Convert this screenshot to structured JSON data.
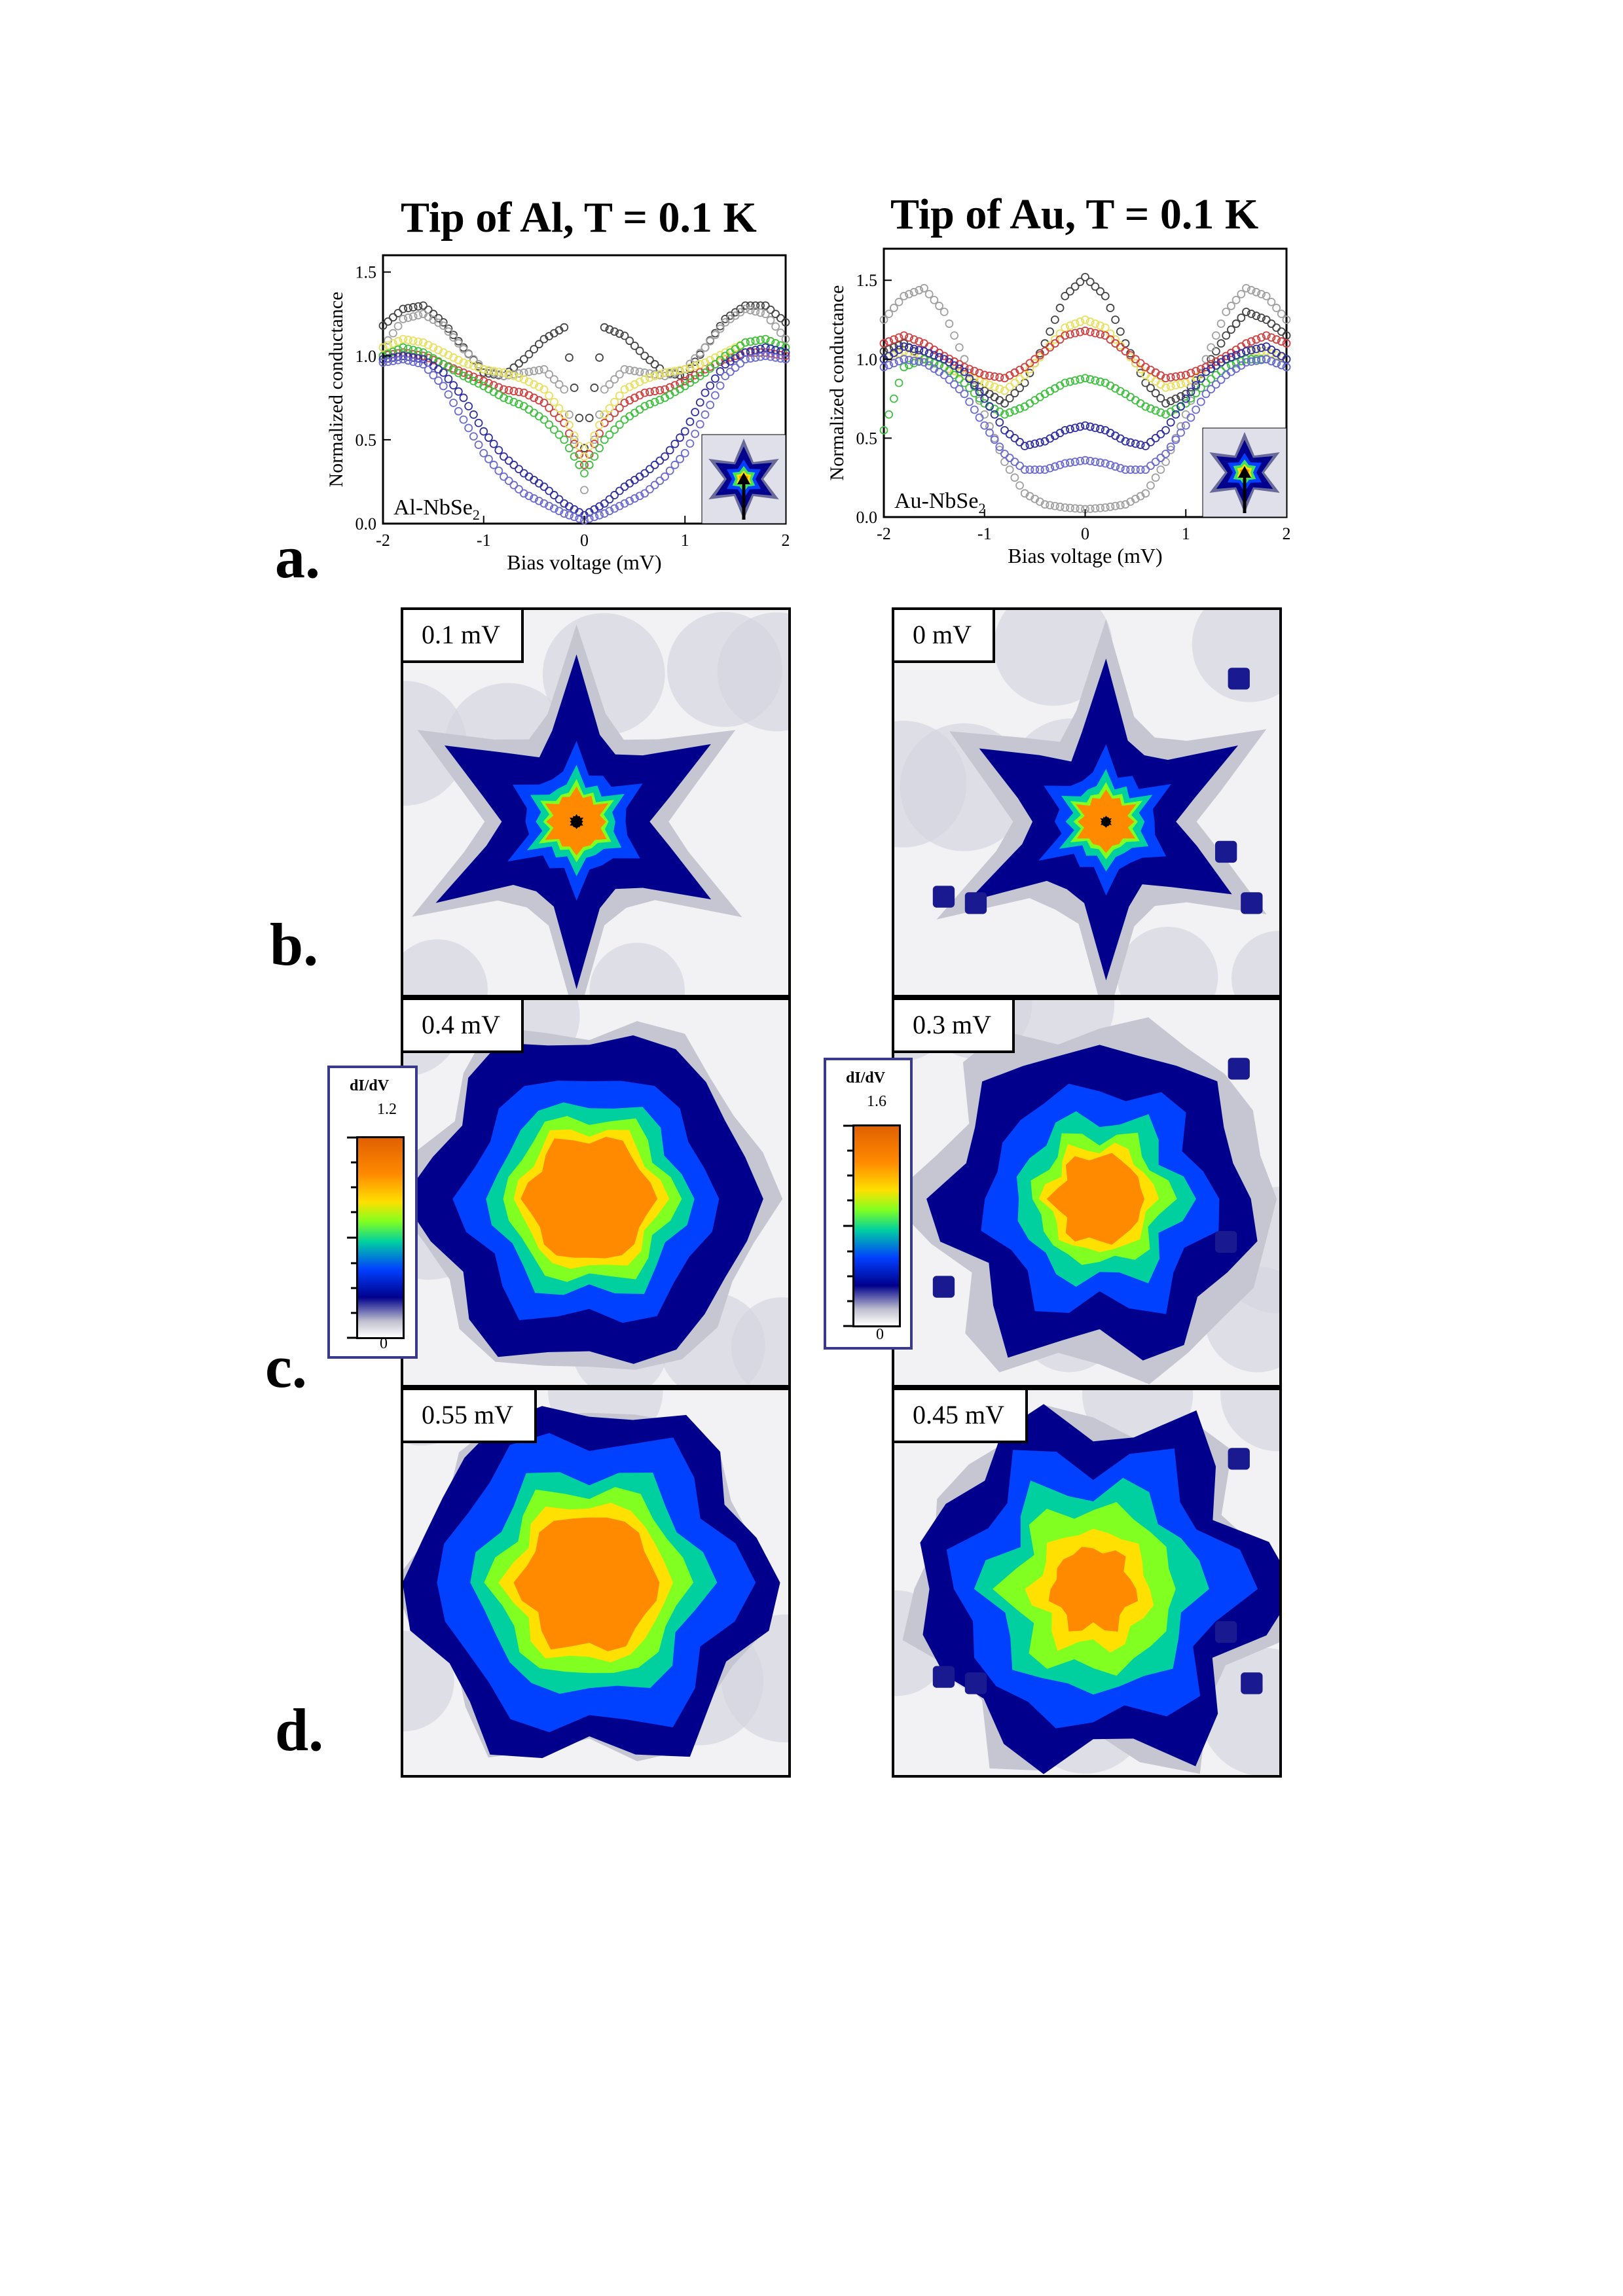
{
  "figure": {
    "panel_letters": [
      "a.",
      "b.",
      "c.",
      "d."
    ],
    "left_column_title": "Tip of Al, T = 0.1 K",
    "right_column_title": "Tip of Au, T = 0.1 K"
  },
  "chart_data": [
    {
      "type": "scatter",
      "title": "Tip of Al, T = 0.1 K",
      "xlabel": "Bias voltage (mV)",
      "ylabel": "Normalized conductance",
      "xlim": [
        -2,
        2
      ],
      "ylim": [
        0,
        1.6
      ],
      "xticks": [
        "-2",
        "-1",
        "0",
        "1",
        "2"
      ],
      "yticks": [
        "0.0",
        "0.5",
        "1.0",
        "1.5"
      ],
      "annotation": "Al-NbSe",
      "annotation_sub": "2",
      "x": [
        -2.0,
        -1.8,
        -1.6,
        -1.4,
        -1.2,
        -1.0,
        -0.8,
        -0.6,
        -0.4,
        -0.2,
        0.0,
        0.2,
        0.4,
        0.6,
        0.8,
        1.0,
        1.2,
        1.4,
        1.6,
        1.8,
        2.0
      ],
      "series": [
        {
          "color": "#444444",
          "values": [
            1.18,
            1.28,
            1.3,
            1.2,
            1.05,
            0.9,
            0.88,
            0.98,
            1.1,
            1.17,
            0.45,
            1.17,
            1.12,
            1.0,
            0.9,
            0.88,
            1.05,
            1.22,
            1.3,
            1.3,
            1.2
          ]
        },
        {
          "color": "#a0a0a0",
          "values": [
            1.05,
            1.22,
            1.25,
            1.18,
            1.04,
            0.92,
            0.88,
            0.9,
            0.92,
            0.8,
            0.2,
            0.8,
            0.92,
            0.9,
            0.88,
            0.92,
            1.05,
            1.2,
            1.28,
            1.25,
            1.1
          ]
        },
        {
          "color": "#d04040",
          "values": [
            1.0,
            1.02,
            1.0,
            0.95,
            0.9,
            0.85,
            0.8,
            0.78,
            0.72,
            0.6,
            0.35,
            0.6,
            0.72,
            0.78,
            0.8,
            0.85,
            0.92,
            0.98,
            1.02,
            1.02,
            1.0
          ]
        },
        {
          "color": "#e8e060",
          "values": [
            1.05,
            1.1,
            1.08,
            1.02,
            0.96,
            0.92,
            0.9,
            0.86,
            0.8,
            0.65,
            0.4,
            0.65,
            0.8,
            0.86,
            0.9,
            0.92,
            0.96,
            1.02,
            1.08,
            1.1,
            1.05
          ]
        },
        {
          "color": "#40c040",
          "values": [
            1.0,
            1.05,
            1.02,
            0.95,
            0.88,
            0.82,
            0.75,
            0.7,
            0.62,
            0.5,
            0.3,
            0.5,
            0.62,
            0.7,
            0.75,
            0.82,
            0.9,
            1.0,
            1.08,
            1.1,
            1.05
          ]
        },
        {
          "color": "#3030a0",
          "values": [
            0.98,
            1.0,
            0.98,
            0.9,
            0.75,
            0.55,
            0.4,
            0.3,
            0.22,
            0.12,
            0.05,
            0.12,
            0.22,
            0.3,
            0.4,
            0.55,
            0.78,
            0.95,
            1.02,
            1.05,
            1.02
          ]
        },
        {
          "color": "#6a6ad0",
          "values": [
            0.96,
            0.98,
            0.95,
            0.82,
            0.62,
            0.42,
            0.28,
            0.18,
            0.12,
            0.06,
            0.02,
            0.06,
            0.12,
            0.18,
            0.28,
            0.42,
            0.65,
            0.88,
            0.98,
            1.0,
            0.98
          ]
        }
      ]
    },
    {
      "type": "scatter",
      "title": "Tip of Au, T = 0.1 K",
      "xlabel": "Bias voltage (mV)",
      "ylabel": "Normalized conductance",
      "xlim": [
        -2,
        2
      ],
      "ylim": [
        0,
        1.7
      ],
      "xticks": [
        "-2",
        "-1",
        "0",
        "1",
        "2"
      ],
      "yticks": [
        "0.0",
        "0.5",
        "1.0",
        "1.5"
      ],
      "annotation": "Au-NbSe",
      "annotation_sub": "2",
      "x": [
        -2.0,
        -1.8,
        -1.6,
        -1.4,
        -1.2,
        -1.0,
        -0.8,
        -0.6,
        -0.4,
        -0.2,
        0.0,
        0.2,
        0.4,
        0.6,
        0.8,
        1.0,
        1.2,
        1.4,
        1.6,
        1.8,
        2.0
      ],
      "series": [
        {
          "color": "#444444",
          "values": [
            1.05,
            1.1,
            1.0,
            0.95,
            0.9,
            0.8,
            0.72,
            0.85,
            1.1,
            1.4,
            1.52,
            1.4,
            1.1,
            0.85,
            0.72,
            0.78,
            0.95,
            1.15,
            1.3,
            1.25,
            1.15
          ]
        },
        {
          "color": "#a0a0a0",
          "values": [
            1.25,
            1.4,
            1.45,
            1.3,
            1.0,
            0.65,
            0.35,
            0.15,
            0.08,
            0.06,
            0.05,
            0.06,
            0.08,
            0.15,
            0.35,
            0.65,
            1.0,
            1.3,
            1.45,
            1.4,
            1.25
          ]
        },
        {
          "color": "#e8e060",
          "values": [
            1.0,
            1.05,
            1.0,
            0.95,
            0.9,
            0.85,
            0.8,
            0.9,
            1.05,
            1.2,
            1.25,
            1.2,
            1.05,
            0.9,
            0.82,
            0.85,
            0.92,
            1.0,
            1.05,
            1.05,
            1.0
          ]
        },
        {
          "color": "#d04040",
          "values": [
            1.1,
            1.15,
            1.1,
            1.02,
            0.95,
            0.9,
            0.88,
            0.95,
            1.05,
            1.15,
            1.18,
            1.15,
            1.05,
            0.95,
            0.88,
            0.9,
            0.95,
            1.02,
            1.1,
            1.15,
            1.1
          ]
        },
        {
          "color": "#40c040",
          "values": [
            0.55,
            0.95,
            1.0,
            0.95,
            0.85,
            0.72,
            0.65,
            0.7,
            0.78,
            0.85,
            0.88,
            0.85,
            0.78,
            0.7,
            0.65,
            0.72,
            0.85,
            0.95,
            1.0,
            1.0,
            0.95
          ]
        },
        {
          "color": "#3030a0",
          "values": [
            1.0,
            1.08,
            1.05,
            1.0,
            0.92,
            0.75,
            0.55,
            0.45,
            0.48,
            0.55,
            0.58,
            0.55,
            0.48,
            0.45,
            0.55,
            0.75,
            0.92,
            1.0,
            1.05,
            1.08,
            1.0
          ]
        },
        {
          "color": "#6a6ad0",
          "values": [
            0.95,
            1.0,
            0.98,
            0.9,
            0.78,
            0.58,
            0.4,
            0.3,
            0.3,
            0.34,
            0.36,
            0.34,
            0.3,
            0.3,
            0.4,
            0.58,
            0.78,
            0.9,
            0.98,
            1.0,
            0.95
          ]
        }
      ]
    }
  ],
  "maps": {
    "b_left": {
      "label": "0.1 mV"
    },
    "b_right": {
      "label": "0 mV"
    },
    "c_left": {
      "label": "0.4 mV"
    },
    "c_right": {
      "label": "0.3 mV"
    },
    "d_left": {
      "label": "0.55 mV"
    },
    "d_right": {
      "label": "0.45 mV"
    }
  },
  "colorbars": {
    "left": {
      "title": "dI/dV",
      "max": "1.2",
      "min": "0"
    },
    "right": {
      "title": "dI/dV",
      "max": "1.6",
      "min": "0"
    }
  },
  "colors": {
    "colormap": [
      "#ffffff",
      "#c0c0d0",
      "#00008c",
      "#0040ff",
      "#00d0a0",
      "#80ff20",
      "#ffe000",
      "#ff8a00",
      "#e06000",
      "#000000"
    ]
  }
}
